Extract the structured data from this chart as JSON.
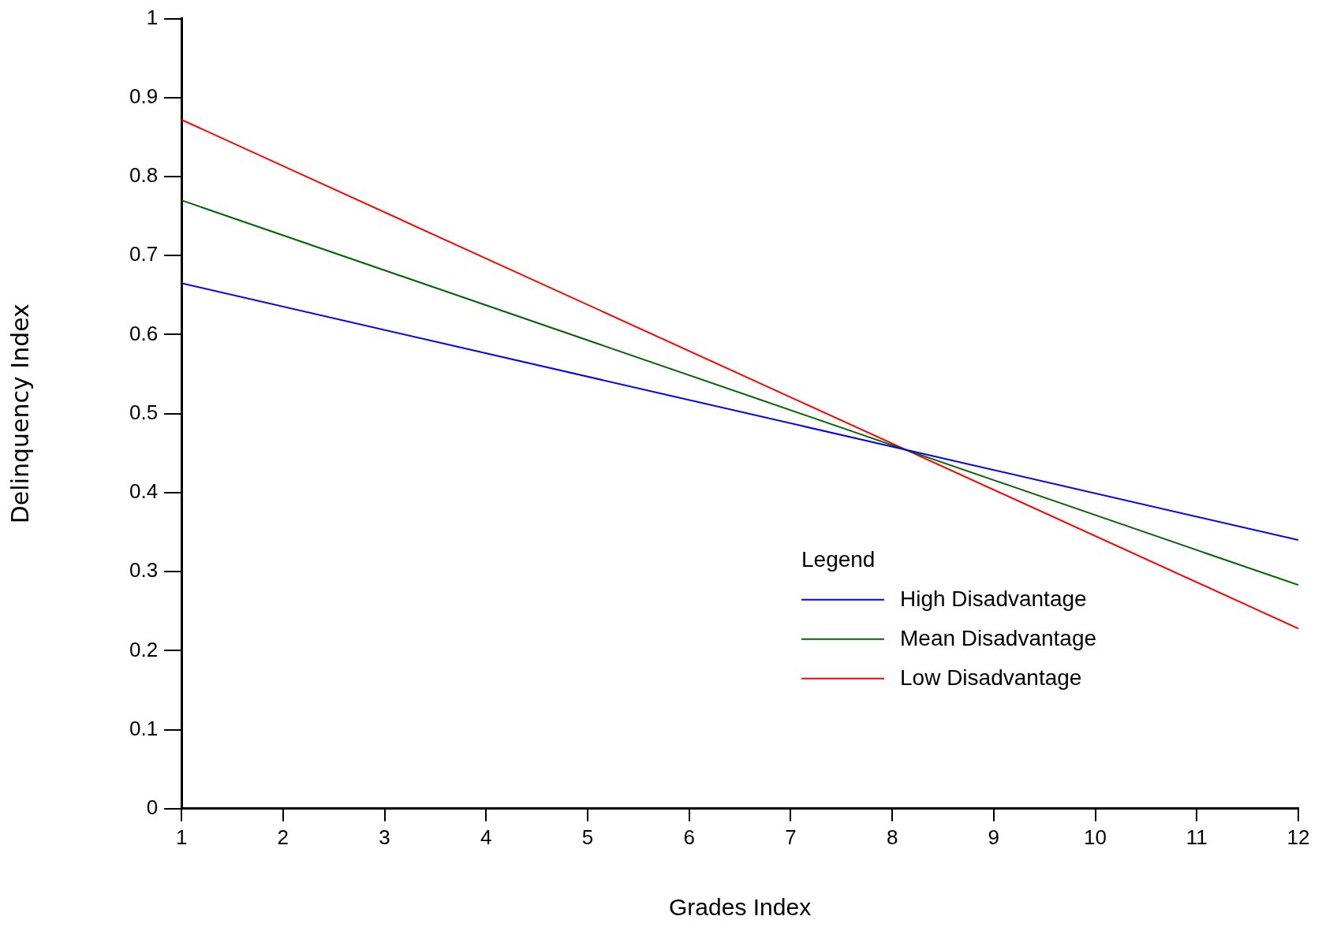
{
  "chart_data": {
    "type": "line",
    "xlabel": "Grades Index",
    "ylabel": "Delinquency Index",
    "legend_title": "Legend",
    "legend": "bottom right",
    "marker": "none",
    "grid": false,
    "xlim": [
      1,
      12
    ],
    "xticks": [
      1,
      2,
      3,
      4,
      5,
      6,
      7,
      8,
      9,
      10,
      11,
      12
    ],
    "ylim": [
      0,
      1
    ],
    "yticks": [
      0,
      0.1,
      0.2,
      0.3,
      0.4,
      0.5,
      0.6,
      0.7,
      0.8,
      0.9,
      1
    ],
    "x": [
      1,
      12
    ],
    "series": [
      {
        "name": "High Disadvantage",
        "color": "#0000ff",
        "values": [
          0.665,
          0.34
        ]
      },
      {
        "name": "Mean Disadvantage",
        "color": "#006400",
        "values": [
          0.77,
          0.283
        ]
      },
      {
        "name": "Low Disadvantage",
        "color": "#ff0000",
        "values": [
          0.872,
          0.228
        ]
      }
    ]
  }
}
